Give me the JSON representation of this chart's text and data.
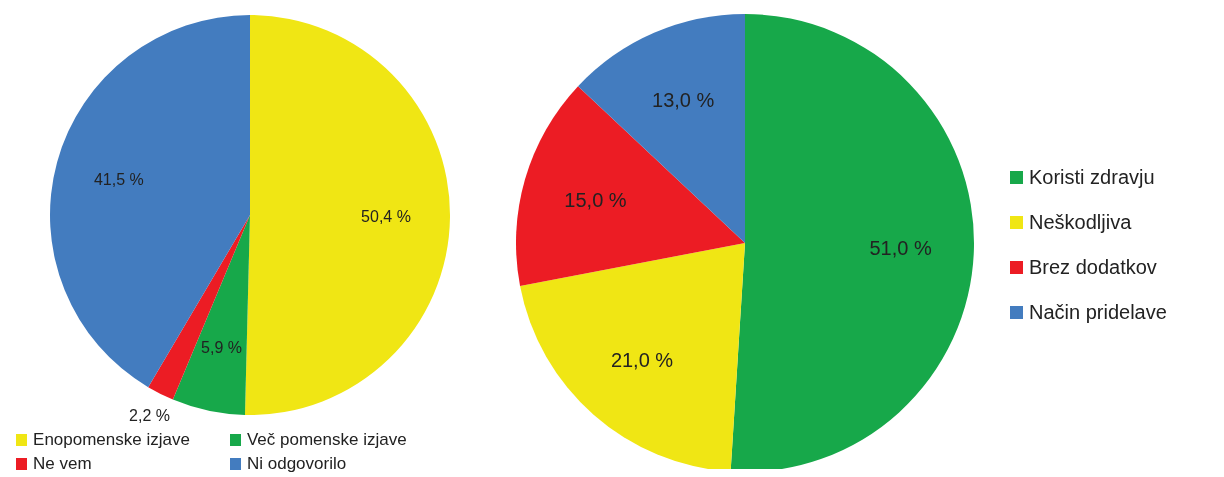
{
  "chart_data": [
    {
      "type": "pie",
      "categories": [
        "Enopomenske izjave",
        "Več pomenske izjave",
        "Ne vem",
        "Ni odgovorilo"
      ],
      "values": [
        50.4,
        5.9,
        2.2,
        41.5
      ],
      "colors": [
        "#f0e614",
        "#17a84a",
        "#ec1c24",
        "#437cbf"
      ],
      "value_labels": [
        "50,4 %",
        "5,9 %",
        "2,2 %",
        "41,5 %"
      ],
      "legend": "bottom"
    },
    {
      "type": "pie",
      "categories": [
        "Koristi zdravju",
        "Neškodljiva",
        "Brez dodatkov",
        "Način pridelave"
      ],
      "values": [
        51.0,
        21.0,
        15.0,
        13.0
      ],
      "colors": [
        "#17a84a",
        "#f0e614",
        "#ec1c24",
        "#437cbf"
      ],
      "value_labels": [
        "51,0 %",
        "21,0 %",
        "15,0 %",
        "13,0 %"
      ],
      "legend": "right"
    }
  ]
}
